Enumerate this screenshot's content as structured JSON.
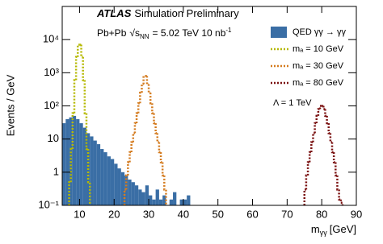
{
  "chart_data": {
    "type": "histogram",
    "atlas_label": "ATLAS",
    "atlas_sub": "Simulation Preliminary",
    "collision": {
      "system": "Pb+Pb",
      "sqrt": "√s",
      "sqrt_sub": "NN",
      "energy": "= 5.02 TeV 10 nb",
      "lumi_sup": "-1"
    },
    "x_label": {
      "main": "m",
      "sub": "γγ",
      "unit": "[GeV]"
    },
    "y_label": "Events / GeV",
    "lambda_note": "Λ = 1 TeV",
    "log_y": true,
    "xlim": [
      5,
      90
    ],
    "xticks": [
      10,
      20,
      30,
      40,
      50,
      60,
      70,
      80,
      90
    ],
    "ylim": [
      0.1,
      100000
    ],
    "yticks": [
      {
        "value": 0.1,
        "label": "10⁻¹"
      },
      1,
      10,
      {
        "value": 100,
        "label": "10²"
      },
      {
        "value": 1000,
        "label": "10³"
      },
      {
        "value": 10000,
        "label": "10⁴"
      }
    ],
    "series": [
      {
        "name": "QED γγ → γγ",
        "style": "filled",
        "color": "#3a6ea5",
        "bins": [
          5,
          6,
          7,
          8,
          9,
          10,
          11,
          12,
          13,
          14,
          15,
          16,
          17,
          18,
          19,
          20,
          21,
          22,
          23,
          24,
          25,
          26,
          27,
          28,
          29,
          30,
          31,
          32,
          33,
          34,
          35,
          36,
          37,
          38,
          39,
          40,
          41,
          42
        ],
        "values": [
          30,
          40,
          45,
          50,
          40,
          30,
          22,
          15,
          12,
          9,
          7,
          5,
          4,
          3,
          2.5,
          1.8,
          1.3,
          1,
          0.8,
          0.6,
          0.5,
          0.4,
          0.3,
          0.25,
          0.4,
          0.2,
          0.15,
          0.3,
          0.15,
          0.2,
          null,
          0.15,
          0.25,
          null,
          0.15,
          0.15,
          0.2
        ]
      },
      {
        "name": "mₐ = 10 GeV",
        "style": "dotted",
        "color": "#b5b800",
        "bins": [
          7,
          7.5,
          8,
          8.5,
          9,
          9.5,
          10,
          10.5,
          11,
          11.5,
          12,
          12.5,
          13
        ],
        "values": [
          0.5,
          5,
          60,
          600,
          3000,
          7000,
          7000,
          3000,
          600,
          60,
          5,
          0.5
        ]
      },
      {
        "name": "mₐ = 30 GeV",
        "style": "dotted",
        "color": "#d47b1f",
        "bins": [
          23,
          23.5,
          24,
          24.5,
          25,
          25.5,
          26,
          26.5,
          27,
          27.5,
          28,
          28.5,
          29,
          29.5,
          30,
          30.5,
          31,
          31.5,
          32,
          32.5,
          33,
          33.5,
          34,
          34.5,
          35
        ],
        "values": [
          0.3,
          0.8,
          2,
          4,
          8,
          15,
          30,
          60,
          120,
          250,
          450,
          800,
          800,
          450,
          250,
          120,
          60,
          30,
          15,
          8,
          4,
          2,
          0.8,
          0.3
        ]
      },
      {
        "name": "mₐ = 80 GeV",
        "style": "dotted",
        "color": "#7a1010",
        "bins": [
          75,
          75.5,
          76,
          76.5,
          77,
          77.5,
          78,
          78.5,
          79,
          79.5,
          80,
          80.5,
          81,
          81.5,
          82,
          82.5,
          83,
          83.5,
          84,
          84.5,
          85,
          85.5,
          86
        ],
        "values": [
          0.3,
          0.8,
          2,
          4,
          8,
          15,
          30,
          50,
          80,
          100,
          100,
          80,
          50,
          30,
          15,
          8,
          4,
          2,
          0.8,
          0.3,
          0.15,
          0.12
        ]
      }
    ]
  }
}
